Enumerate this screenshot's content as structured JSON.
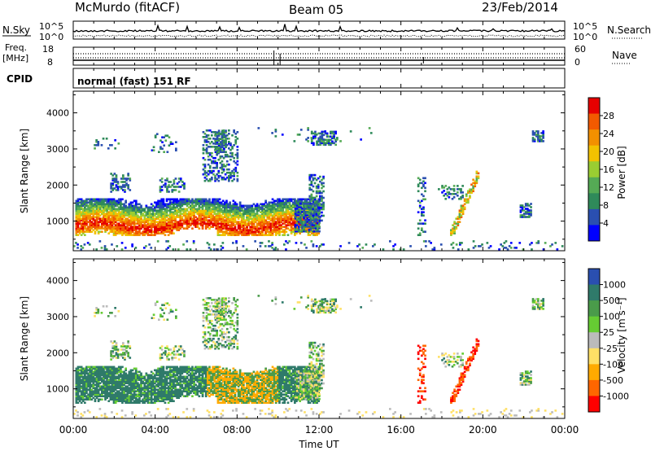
{
  "header": {
    "station": "McMurdo (fitACF)",
    "beam": "Beam 05",
    "date": "23/Feb/2014",
    "mode": "normal (fast) 151 RF"
  },
  "noise_panel": {
    "left_label": "N.Sky",
    "right_label": "N.Search",
    "top_tick": "10^5",
    "bottom_tick": "10^0",
    "right_style": "dotted"
  },
  "freq_panel": {
    "left_label_1": "Freq.",
    "left_label_2": "[MHz]",
    "left_top_tick": "18",
    "left_bottom_tick": "8",
    "right_label": "Nave",
    "right_top_tick": "60",
    "right_bottom_tick": "0",
    "right_style": "dotted"
  },
  "cpid_label": "CPID",
  "colors": {
    "power": [
      "#0000ff",
      "#2a4fb0",
      "#2f8a5a",
      "#55aa55",
      "#9acd32",
      "#f2c200",
      "#f29000",
      "#f25a00",
      "#e60000"
    ],
    "velocity": [
      "#2a4fb0",
      "#2f7a6a",
      "#4a9b4a",
      "#66cc33",
      "#bbbbbb",
      "#ffe066",
      "#ffaa00",
      "#ff6600",
      "#ff0000"
    ]
  },
  "chart_data": [
    {
      "type": "heatmap",
      "name": "power",
      "ylabel": "Slant Range [km]",
      "yticks": [
        1000,
        2000,
        3000,
        4000
      ],
      "ylim": [
        180,
        4600
      ],
      "xlim_hours": [
        0,
        24
      ],
      "colorbar_label": "Power [dB]",
      "colorbar_ticks": [
        "4",
        "8",
        "12",
        "16",
        "20",
        "24",
        "28"
      ],
      "colorbar_range": [
        0,
        32
      ]
    },
    {
      "type": "heatmap",
      "name": "velocity",
      "ylabel": "Slant Range [km]",
      "yticks": [
        1000,
        2000,
        3000,
        4000
      ],
      "ylim": [
        180,
        4600
      ],
      "xlim_hours": [
        0,
        24
      ],
      "xlabel": "Time UT",
      "xtick_labels": [
        "00:00",
        "04:00",
        "08:00",
        "12:00",
        "16:00",
        "20:00",
        "00:00"
      ],
      "colorbar_label": "Velocity [m s⁻¹]",
      "colorbar_ticks": [
        "1000",
        "500",
        "100",
        "25",
        "-25",
        "-100",
        "-500",
        "-1000"
      ]
    }
  ]
}
